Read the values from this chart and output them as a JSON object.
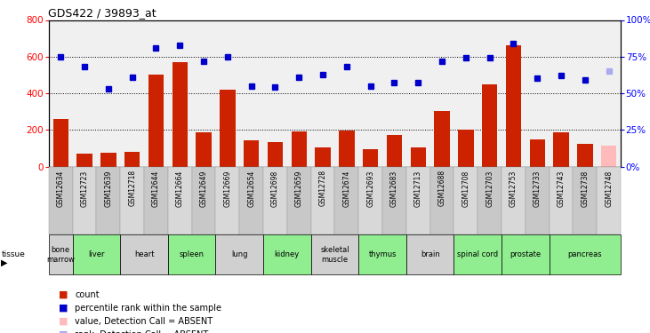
{
  "title": "GDS422 / 39893_at",
  "samples": [
    "GSM12634",
    "GSM12723",
    "GSM12639",
    "GSM12718",
    "GSM12644",
    "GSM12664",
    "GSM12649",
    "GSM12669",
    "GSM12654",
    "GSM12698",
    "GSM12659",
    "GSM12728",
    "GSM12674",
    "GSM12693",
    "GSM12683",
    "GSM12713",
    "GSM12688",
    "GSM12708",
    "GSM12703",
    "GSM12753",
    "GSM12733",
    "GSM12743",
    "GSM12738",
    "GSM12748"
  ],
  "bar_values": [
    260,
    70,
    75,
    80,
    500,
    570,
    185,
    420,
    145,
    135,
    190,
    105,
    195,
    95,
    170,
    105,
    305,
    200,
    450,
    660,
    150,
    185,
    125,
    115
  ],
  "dot_values": [
    75,
    68,
    53,
    61,
    81,
    83,
    72,
    75,
    55,
    54,
    61,
    63,
    68,
    55,
    57,
    57,
    72,
    74,
    74,
    84,
    60,
    62,
    59,
    65
  ],
  "absent_bar": [
    false,
    false,
    false,
    false,
    false,
    false,
    false,
    false,
    false,
    false,
    false,
    false,
    false,
    false,
    false,
    false,
    false,
    false,
    false,
    false,
    false,
    false,
    false,
    true
  ],
  "absent_dot": [
    false,
    false,
    false,
    false,
    false,
    false,
    false,
    false,
    false,
    false,
    false,
    false,
    false,
    false,
    false,
    false,
    false,
    false,
    false,
    false,
    false,
    false,
    false,
    true
  ],
  "tissues": [
    {
      "name": "bone\nmarrow",
      "start": 0,
      "end": 1,
      "color": "#d0d0d0"
    },
    {
      "name": "liver",
      "start": 1,
      "end": 3,
      "color": "#90ee90"
    },
    {
      "name": "heart",
      "start": 3,
      "end": 5,
      "color": "#d0d0d0"
    },
    {
      "name": "spleen",
      "start": 5,
      "end": 7,
      "color": "#90ee90"
    },
    {
      "name": "lung",
      "start": 7,
      "end": 9,
      "color": "#d0d0d0"
    },
    {
      "name": "kidney",
      "start": 9,
      "end": 11,
      "color": "#90ee90"
    },
    {
      "name": "skeletal\nmuscle",
      "start": 11,
      "end": 13,
      "color": "#d0d0d0"
    },
    {
      "name": "thymus",
      "start": 13,
      "end": 15,
      "color": "#90ee90"
    },
    {
      "name": "brain",
      "start": 15,
      "end": 17,
      "color": "#d0d0d0"
    },
    {
      "name": "spinal cord",
      "start": 17,
      "end": 19,
      "color": "#90ee90"
    },
    {
      "name": "prostate",
      "start": 19,
      "end": 21,
      "color": "#90ee90"
    },
    {
      "name": "pancreas",
      "start": 21,
      "end": 24,
      "color": "#90ee90"
    }
  ],
  "bar_color": "#cc2200",
  "bar_absent_color": "#ffbbbb",
  "dot_color": "#0000cc",
  "dot_absent_color": "#aaaaee",
  "ylim_left": [
    0,
    800
  ],
  "ylim_right": [
    0,
    100
  ],
  "yticks_left": [
    0,
    200,
    400,
    600,
    800
  ],
  "yticks_right": [
    0,
    25,
    50,
    75,
    100
  ],
  "ytick_labels_right": [
    "0%",
    "25%",
    "50%",
    "75%",
    "100%"
  ],
  "grid_values": [
    200,
    400,
    600
  ],
  "background_color": "#ffffff",
  "plot_bg_color": "#f0f0f0"
}
